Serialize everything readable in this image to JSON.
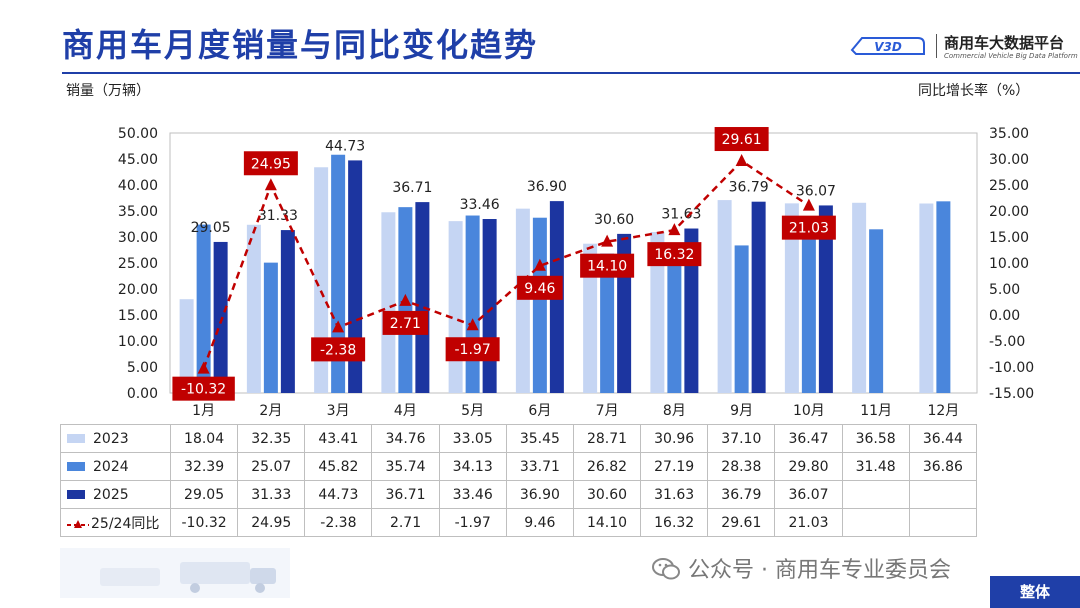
{
  "header": {
    "title": "商用车月度销量与同比变化趋势",
    "logo_cn": "商用车大数据平台",
    "logo_en": "Commercial Vehicle Big Data Platform",
    "logo_mark": "V3D"
  },
  "axis": {
    "left_unit": "销量（万辆）",
    "right_unit": "同比增长率（%）"
  },
  "chart_data": {
    "type": "bar",
    "categories": [
      "1月",
      "2月",
      "3月",
      "4月",
      "5月",
      "6月",
      "7月",
      "8月",
      "9月",
      "10月",
      "11月",
      "12月"
    ],
    "series": [
      {
        "name": "2023",
        "type": "bar",
        "color": "#c5d5f3",
        "values": [
          18.04,
          32.35,
          43.41,
          34.76,
          33.05,
          35.45,
          28.71,
          30.96,
          37.1,
          36.47,
          36.58,
          36.44
        ]
      },
      {
        "name": "2024",
        "type": "bar",
        "color": "#4a86dc",
        "values": [
          32.39,
          25.07,
          45.82,
          35.74,
          34.13,
          33.71,
          26.82,
          27.19,
          28.38,
          29.8,
          31.48,
          36.86
        ]
      },
      {
        "name": "2025",
        "type": "bar",
        "color": "#1c35a0",
        "values": [
          29.05,
          31.33,
          44.73,
          36.71,
          33.46,
          36.9,
          30.6,
          31.63,
          36.79,
          36.07,
          null,
          null
        ]
      },
      {
        "name": "25/24同比",
        "type": "line",
        "axis": "right",
        "color": "#c00000",
        "values": [
          -10.32,
          24.95,
          -2.38,
          2.71,
          -1.97,
          9.46,
          14.1,
          16.32,
          29.61,
          21.03,
          null,
          null
        ]
      }
    ],
    "y_left": {
      "min": 0,
      "max": 50,
      "step": 5,
      "label": "销量（万辆）"
    },
    "y_right": {
      "min": -15,
      "max": 35,
      "step": 5,
      "label": "同比增长率（%）"
    },
    "bar_labels": [
      "29.05",
      "31.33",
      "44.73",
      "36.71",
      "33.46",
      "36.90",
      "30.60",
      "31.63",
      "36.79",
      "36.07"
    ],
    "yoy_labels": [
      "-10.32",
      "24.95",
      "-2.38",
      "2.71",
      "-1.97",
      "9.46",
      "14.10",
      "16.32",
      "29.61",
      "21.03"
    ],
    "grid": false,
    "legend": "table"
  },
  "table": {
    "rows": [
      {
        "label": "2023",
        "cells": [
          "18.04",
          "32.35",
          "43.41",
          "34.76",
          "33.05",
          "35.45",
          "28.71",
          "30.96",
          "37.10",
          "36.47",
          "36.58",
          "36.44"
        ]
      },
      {
        "label": "2024",
        "cells": [
          "32.39",
          "25.07",
          "45.82",
          "35.74",
          "34.13",
          "33.71",
          "26.82",
          "27.19",
          "28.38",
          "29.80",
          "31.48",
          "36.86"
        ]
      },
      {
        "label": "2025",
        "cells": [
          "29.05",
          "31.33",
          "44.73",
          "36.71",
          "33.46",
          "36.90",
          "30.60",
          "31.63",
          "36.79",
          "36.07",
          "",
          ""
        ]
      },
      {
        "label": "25/24同比",
        "cells": [
          "-10.32",
          "24.95",
          "-2.38",
          "2.71",
          "-1.97",
          "9.46",
          "14.10",
          "16.32",
          "29.61",
          "21.03",
          "",
          ""
        ]
      }
    ]
  },
  "footer": {
    "wechat": "公众号 · 商用车专业委员会",
    "tag": "整体"
  }
}
